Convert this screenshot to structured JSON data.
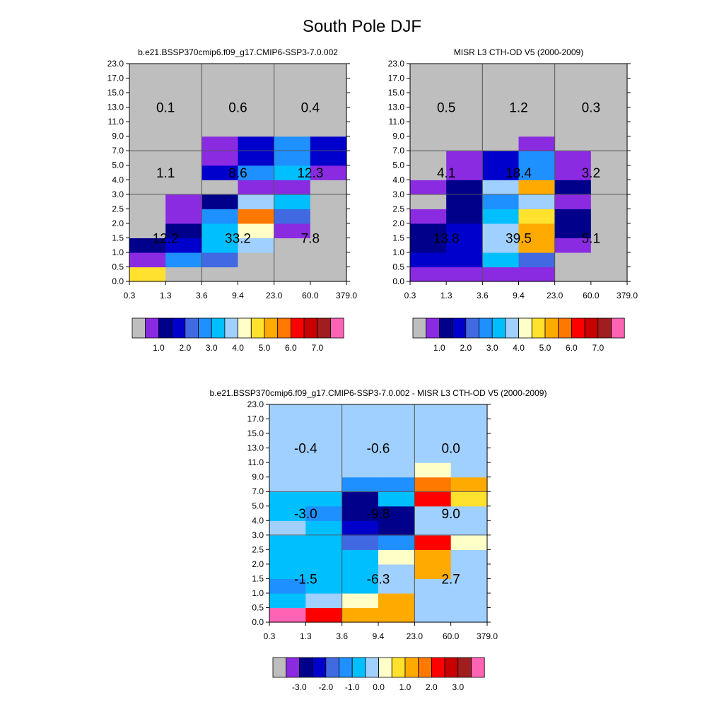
{
  "figure": {
    "title": "South Pole DJF",
    "colors": {
      "missing": "#bebebe",
      "grid": "#555555",
      "palette": [
        "#bebebe",
        "#8a2be2",
        "#00008b",
        "#0000cd",
        "#4169e1",
        "#1e90ff",
        "#00bfff",
        "#a0d0ff",
        "#ffffc8",
        "#ffe12e",
        "#ffaa00",
        "#ff7800",
        "#ff0000",
        "#c80000",
        "#a01e1e",
        "#ff64b4"
      ]
    }
  },
  "chart_data": [
    {
      "id": "model",
      "type": "heatmap",
      "title": "b.e21.BSSP370cmip6.f09_g17.CMIP6-SSP3-7.0.002",
      "xticks": [
        "0.3",
        "1.3",
        "3.6",
        "9.4",
        "23.0",
        "60.0",
        "379.0"
      ],
      "yticks": [
        "0.0",
        "0.5",
        "1.0",
        "1.5",
        "2.0",
        "2.5",
        "3.0",
        "4.0",
        "5.0",
        "7.0",
        "9.0",
        "11.0",
        "13.0",
        "15.0",
        "17.0",
        "23.0"
      ],
      "cells": [
        [
          9,
          0,
          0,
          0,
          0,
          0
        ],
        [
          1,
          5,
          4,
          0,
          0,
          0
        ],
        [
          2,
          3,
          6,
          7,
          0,
          0
        ],
        [
          0,
          2,
          6,
          8,
          1,
          0
        ],
        [
          0,
          1,
          5,
          11,
          4,
          0
        ],
        [
          0,
          1,
          2,
          7,
          6,
          0
        ],
        [
          0,
          0,
          0,
          1,
          1,
          0
        ],
        [
          0,
          0,
          3,
          5,
          6,
          1
        ],
        [
          0,
          0,
          1,
          3,
          5,
          3
        ],
        [
          0,
          0,
          1,
          3,
          5,
          3
        ],
        [
          0,
          0,
          0,
          0,
          0,
          0
        ],
        [
          0,
          0,
          0,
          0,
          0,
          0
        ],
        [
          0,
          0,
          0,
          0,
          0,
          0
        ],
        [
          0,
          0,
          0,
          0,
          0,
          0
        ],
        [
          0,
          0,
          0,
          0,
          0,
          0
        ]
      ],
      "box_labels": [
        {
          "group": "low-opt-thin",
          "col": 0,
          "row": 0,
          "text": "12.2"
        },
        {
          "group": "low-opt-medium",
          "col": 1,
          "row": 0,
          "text": "33.2"
        },
        {
          "group": "low-opt-thick",
          "col": 2,
          "row": 0,
          "text": "7.8"
        },
        {
          "group": "mid-opt-thin",
          "col": 0,
          "row": 1,
          "text": "1.1"
        },
        {
          "group": "mid-opt-medium",
          "col": 1,
          "row": 1,
          "text": "8.6"
        },
        {
          "group": "mid-opt-thick",
          "col": 2,
          "row": 1,
          "text": "12.3"
        },
        {
          "group": "high-opt-thin",
          "col": 0,
          "row": 2,
          "text": "0.1"
        },
        {
          "group": "high-opt-medium",
          "col": 1,
          "row": 2,
          "text": "0.6"
        },
        {
          "group": "high-opt-thick",
          "col": 2,
          "row": 2,
          "text": "0.4"
        }
      ],
      "colorbar": {
        "tick_labels": [
          "1.0",
          "2.0",
          "3.0",
          "4.0",
          "5.0",
          "6.0",
          "7.0"
        ]
      }
    },
    {
      "id": "obs",
      "type": "heatmap",
      "title": "MISR L3 CTH-OD V5 (2000-2009)",
      "xticks": [
        "0.3",
        "1.3",
        "3.6",
        "9.4",
        "23.0",
        "60.0",
        "379.0"
      ],
      "yticks": [
        "0.0",
        "0.5",
        "1.0",
        "1.5",
        "2.0",
        "2.5",
        "3.0",
        "4.0",
        "5.0",
        "7.0",
        "9.0",
        "11.0",
        "13.0",
        "15.0",
        "17.0",
        "23.0"
      ],
      "cells": [
        [
          1,
          1,
          1,
          1,
          0,
          0
        ],
        [
          3,
          3,
          6,
          4,
          0,
          0
        ],
        [
          2,
          3,
          7,
          10,
          1,
          0
        ],
        [
          2,
          3,
          7,
          10,
          2,
          0
        ],
        [
          1,
          2,
          6,
          9,
          2,
          0
        ],
        [
          0,
          2,
          5,
          7,
          1,
          0
        ],
        [
          1,
          2,
          7,
          10,
          2,
          0
        ],
        [
          0,
          1,
          3,
          5,
          1,
          0
        ],
        [
          0,
          1,
          3,
          5,
          1,
          0
        ],
        [
          0,
          0,
          0,
          1,
          0,
          0
        ],
        [
          0,
          0,
          0,
          0,
          0,
          0
        ],
        [
          0,
          0,
          0,
          0,
          0,
          0
        ],
        [
          0,
          0,
          0,
          0,
          0,
          0
        ],
        [
          0,
          0,
          0,
          0,
          0,
          0
        ],
        [
          0,
          0,
          0,
          0,
          0,
          0
        ]
      ],
      "box_labels": [
        {
          "group": "low-opt-thin",
          "col": 0,
          "row": 0,
          "text": "13.8"
        },
        {
          "group": "low-opt-medium",
          "col": 1,
          "row": 0,
          "text": "39.5"
        },
        {
          "group": "low-opt-thick",
          "col": 2,
          "row": 0,
          "text": "5.1"
        },
        {
          "group": "mid-opt-thin",
          "col": 0,
          "row": 1,
          "text": "4.1"
        },
        {
          "group": "mid-opt-medium",
          "col": 1,
          "row": 1,
          "text": "18.4"
        },
        {
          "group": "mid-opt-thick",
          "col": 2,
          "row": 1,
          "text": "3.2"
        },
        {
          "group": "high-opt-thin",
          "col": 0,
          "row": 2,
          "text": "0.5"
        },
        {
          "group": "high-opt-medium",
          "col": 1,
          "row": 2,
          "text": "1.2"
        },
        {
          "group": "high-opt-thick",
          "col": 2,
          "row": 2,
          "text": "0.3"
        }
      ],
      "colorbar": {
        "tick_labels": [
          "1.0",
          "2.0",
          "3.0",
          "4.0",
          "5.0",
          "6.0",
          "7.0"
        ]
      }
    },
    {
      "id": "diff",
      "type": "heatmap",
      "title": "b.e21.BSSP370cmip6.f09_g17.CMIP6-SSP3-7.0.002 - MISR L3 CTH-OD V5 (2000-2009)",
      "xticks": [
        "0.3",
        "1.3",
        "3.6",
        "9.4",
        "23.0",
        "60.0",
        "379.0"
      ],
      "yticks": [
        "0.0",
        "0.5",
        "1.0",
        "1.5",
        "2.0",
        "2.5",
        "3.0",
        "4.0",
        "5.0",
        "7.0",
        "9.0",
        "11.0",
        "13.0",
        "15.0",
        "17.0",
        "23.0"
      ],
      "cells": [
        [
          15,
          12,
          10,
          10,
          7,
          7
        ],
        [
          6,
          7,
          8,
          10,
          7,
          7
        ],
        [
          5,
          6,
          6,
          7,
          7,
          7
        ],
        [
          6,
          6,
          6,
          7,
          10,
          7
        ],
        [
          6,
          6,
          6,
          8,
          10,
          7
        ],
        [
          6,
          6,
          4,
          5,
          12,
          8
        ],
        [
          7,
          6,
          3,
          2,
          7,
          7
        ],
        [
          6,
          5,
          2,
          2,
          7,
          7
        ],
        [
          6,
          6,
          2,
          6,
          12,
          9
        ],
        [
          7,
          7,
          5,
          5,
          11,
          10
        ],
        [
          7,
          7,
          7,
          7,
          8,
          7
        ],
        [
          7,
          7,
          7,
          7,
          7,
          7
        ],
        [
          7,
          7,
          7,
          7,
          7,
          7
        ],
        [
          7,
          7,
          7,
          7,
          7,
          7
        ],
        [
          7,
          7,
          7,
          7,
          7,
          7
        ]
      ],
      "box_labels": [
        {
          "group": "low-opt-thin",
          "col": 0,
          "row": 0,
          "text": "-1.5"
        },
        {
          "group": "low-opt-medium",
          "col": 1,
          "row": 0,
          "text": "-6.3"
        },
        {
          "group": "low-opt-thick",
          "col": 2,
          "row": 0,
          "text": "2.7"
        },
        {
          "group": "mid-opt-thin",
          "col": 0,
          "row": 1,
          "text": "-3.0"
        },
        {
          "group": "mid-opt-medium",
          "col": 1,
          "row": 1,
          "text": "-9.8"
        },
        {
          "group": "mid-opt-thick",
          "col": 2,
          "row": 1,
          "text": "9.0"
        },
        {
          "group": "high-opt-thin",
          "col": 0,
          "row": 2,
          "text": "-0.4"
        },
        {
          "group": "high-opt-medium",
          "col": 1,
          "row": 2,
          "text": "-0.6"
        },
        {
          "group": "high-opt-thick",
          "col": 2,
          "row": 2,
          "text": "0.0"
        }
      ],
      "colorbar": {
        "tick_labels": [
          "-3.0",
          "-2.0",
          "-1.0",
          "0.0",
          "1.0",
          "2.0",
          "3.0"
        ]
      }
    }
  ]
}
